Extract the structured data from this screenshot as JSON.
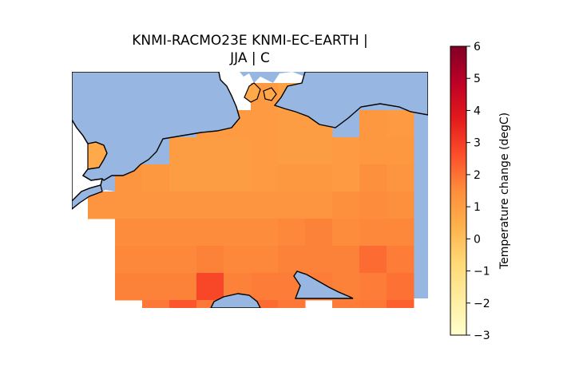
{
  "title": {
    "line1": "KNMI-RACMO23E KNMI-EC-EARTH |",
    "line2": "JJA | C"
  },
  "colors": {
    "ocean": "#97b6e1",
    "coastline": "#000000",
    "cmap": "YlOrRd"
  },
  "colorbar": {
    "label": "Temperature change (degC)",
    "vmin": -3,
    "vmax": 6,
    "ticks": [
      {
        "value": 6,
        "label": "6"
      },
      {
        "value": 5,
        "label": "5"
      },
      {
        "value": 4,
        "label": "4"
      },
      {
        "value": 3,
        "label": "3"
      },
      {
        "value": 2,
        "label": "2"
      },
      {
        "value": 1,
        "label": "1"
      },
      {
        "value": 0,
        "label": "0"
      },
      {
        "value": -1,
        "label": "−1"
      },
      {
        "value": -2,
        "label": "−2"
      },
      {
        "value": -3,
        "label": "−3"
      }
    ]
  },
  "chart_data": {
    "type": "heatmap",
    "variable": "Temperature change (degC)",
    "season": "JJA",
    "rows_north_to_south": [
      [
        null,
        null,
        null,
        null,
        null,
        null,
        null,
        null,
        null,
        null,
        null,
        null,
        null
      ],
      [
        null,
        null,
        null,
        null,
        null,
        null,
        null,
        null,
        null,
        null,
        null,
        null,
        null
      ],
      [
        null,
        null,
        null,
        null,
        null,
        null,
        null,
        1.1,
        0.9,
        null,
        null,
        null,
        null
      ],
      [
        null,
        null,
        null,
        null,
        null,
        1.1,
        1.1,
        1.1,
        1.0,
        1.0,
        null,
        1.2,
        1.1
      ],
      [
        null,
        null,
        null,
        null,
        1.0,
        1.0,
        1.0,
        1.1,
        1.0,
        1.0,
        1.1,
        1.2,
        1.2
      ],
      [
        null,
        null,
        1.3,
        1.2,
        1.0,
        1.0,
        1.0,
        1.1,
        1.2,
        1.2,
        1.1,
        1.4,
        1.3
      ],
      [
        null,
        1.3,
        1.3,
        1.3,
        1.3,
        1.3,
        1.3,
        1.3,
        1.3,
        1.3,
        1.4,
        1.5,
        1.4
      ],
      [
        null,
        null,
        1.5,
        1.5,
        1.5,
        1.5,
        1.5,
        1.5,
        1.6,
        1.7,
        1.5,
        1.6,
        1.6
      ],
      [
        null,
        null,
        1.6,
        1.6,
        1.6,
        1.7,
        1.6,
        1.6,
        1.7,
        1.7,
        1.7,
        2.1,
        1.8
      ],
      [
        null,
        null,
        1.7,
        1.7,
        1.7,
        2.8,
        1.7,
        1.8,
        1.8,
        1.8,
        1.7,
        1.8,
        2.0
      ],
      [
        null,
        null,
        null,
        1.9,
        2.5,
        1.9,
        2.1,
        2.1,
        1.9,
        null,
        1.8,
        1.9,
        2.3
      ]
    ]
  }
}
